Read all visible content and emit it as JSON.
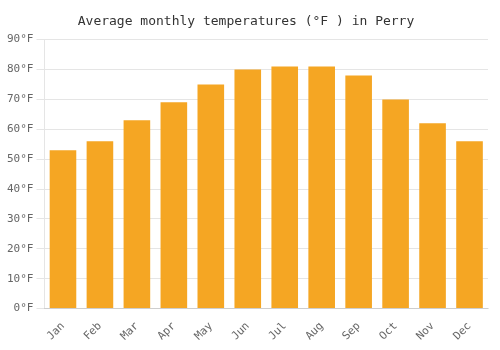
{
  "chart_data": {
    "type": "bar",
    "title": "Average monthly temperatures (°F ) in Perry",
    "categories": [
      "Jan",
      "Feb",
      "Mar",
      "Apr",
      "May",
      "Jun",
      "Jul",
      "Aug",
      "Sep",
      "Oct",
      "Nov",
      "Dec"
    ],
    "values": [
      53,
      56,
      63,
      69,
      75,
      80,
      81,
      81,
      78,
      70,
      62,
      56
    ],
    "color": "#F5A623",
    "ylim": [
      0,
      90
    ],
    "yticks": [
      {
        "value": 0,
        "label": "0°F"
      },
      {
        "value": 10,
        "label": "10°F"
      },
      {
        "value": 20,
        "label": "20°F"
      },
      {
        "value": 30,
        "label": "30°F"
      },
      {
        "value": 40,
        "label": "40°F"
      },
      {
        "value": 50,
        "label": "50°F"
      },
      {
        "value": 60,
        "label": "60°F"
      },
      {
        "value": 70,
        "label": "70°F"
      },
      {
        "value": 80,
        "label": "80°F"
      },
      {
        "value": 90,
        "label": "90°F"
      }
    ],
    "grid": true
  }
}
